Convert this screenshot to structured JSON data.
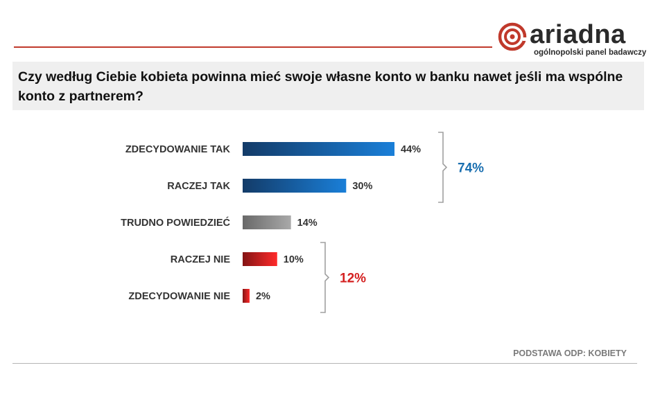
{
  "brand": {
    "name": "ariadna",
    "tagline": "ogólnopolski panel badawczy",
    "color": "#c0392b"
  },
  "question": "Czy według Ciebie kobieta powinna mieć swoje własne konto w banku nawet jeśli ma wspólne konto z partnerem?",
  "footer": {
    "base_note": "PODSTAWA ODP: KOBIETY"
  },
  "chart_data": {
    "type": "bar",
    "orientation": "horizontal",
    "categories": [
      "ZDECYDOWANIE  TAK",
      "RACZEJ TAK",
      "TRUDNO  POWIEDZIEĆ",
      "RACZEJ NIE",
      "ZDECYDOWANIE  NIE"
    ],
    "values": [
      44,
      30,
      14,
      10,
      2
    ],
    "value_labels": [
      "44%",
      "30%",
      "14%",
      "10%",
      "2%"
    ],
    "unit": "%",
    "bar_colors": [
      "#1f5fa8",
      "#1f5fa8",
      "#a9a9a9",
      "#d42020",
      "#d42020"
    ],
    "groups": [
      {
        "label": "74%",
        "from": 0,
        "to": 1,
        "color": "#1a6fb0"
      },
      {
        "label": "12%",
        "from": 3,
        "to": 4,
        "color": "#d42020"
      }
    ],
    "xlim": [
      0,
      44
    ],
    "grid": false,
    "legend": "none"
  }
}
